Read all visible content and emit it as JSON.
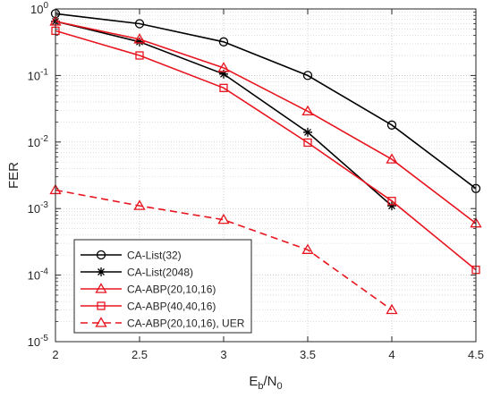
{
  "chart_data": {
    "type": "line",
    "title": "",
    "xlabel": {
      "main": "E",
      "sub1": "b",
      "mid": "/N",
      "sub2": "0"
    },
    "ylabel": "FER",
    "xlim": [
      2,
      4.5
    ],
    "ylim": [
      1e-05,
      1
    ],
    "yscale": "log",
    "grid": true,
    "legend_position": "bottom-left",
    "x_ticks": [
      "2",
      "2.5",
      "3",
      "3.5",
      "4",
      "4.5"
    ],
    "y_ticks": [
      {
        "base": "10",
        "exp": "0"
      },
      {
        "base": "10",
        "exp": "-1"
      },
      {
        "base": "10",
        "exp": "-2"
      },
      {
        "base": "10",
        "exp": "-3"
      },
      {
        "base": "10",
        "exp": "-4"
      },
      {
        "base": "10",
        "exp": "-5"
      }
    ],
    "series": [
      {
        "name": "CA-List(32)",
        "color": "#000000",
        "marker": "circle",
        "dash": "solid",
        "x": [
          2,
          2.5,
          3,
          3.5,
          4,
          4.5
        ],
        "y": [
          0.85,
          0.6,
          0.32,
          0.1,
          0.018,
          0.002
        ]
      },
      {
        "name": "CA-List(2048)",
        "color": "#000000",
        "marker": "star",
        "dash": "solid",
        "x": [
          2,
          2.5,
          3,
          3.5,
          4
        ],
        "y": [
          0.65,
          0.32,
          0.105,
          0.014,
          0.0011
        ]
      },
      {
        "name": "CA-ABP(20,10,16)",
        "color": "#e8141e",
        "marker": "triangle",
        "dash": "solid",
        "x": [
          2,
          2.5,
          3,
          3.5,
          4,
          4.5
        ],
        "y": [
          0.65,
          0.35,
          0.13,
          0.029,
          0.0055,
          0.0006
        ]
      },
      {
        "name": "CA-ABP(40,40,16)",
        "color": "#e8141e",
        "marker": "square",
        "dash": "solid",
        "x": [
          2,
          2.5,
          3,
          3.5,
          4,
          4.5
        ],
        "y": [
          0.47,
          0.2,
          0.065,
          0.0098,
          0.0013,
          0.00012
        ]
      },
      {
        "name": "CA-ABP(20,10,16), UER",
        "color": "#e8141e",
        "marker": "triangle",
        "dash": "dashed",
        "x": [
          2,
          2.5,
          3,
          3.5,
          4
        ],
        "y": [
          0.0019,
          0.0011,
          0.00068,
          0.00024,
          3e-05
        ]
      }
    ]
  }
}
